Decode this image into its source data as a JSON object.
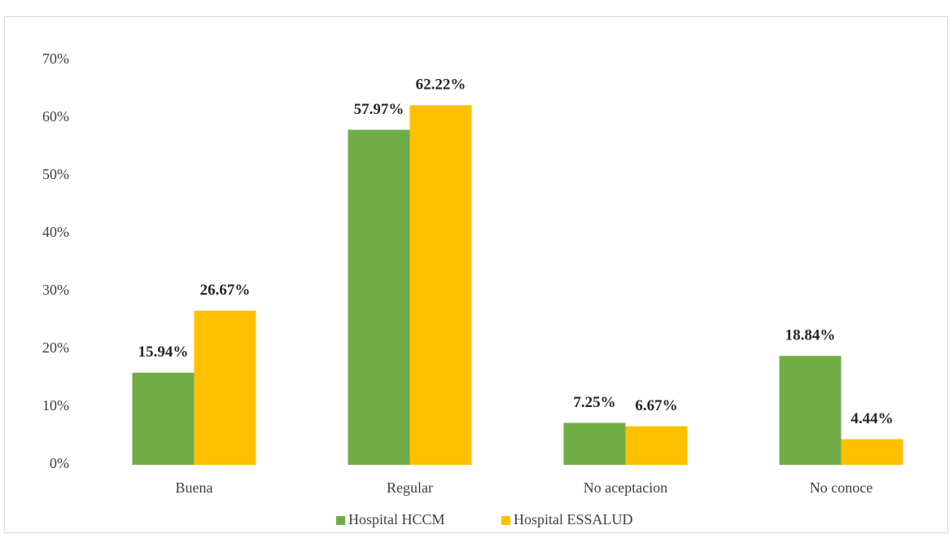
{
  "chart_data": {
    "type": "bar",
    "categories": [
      "Buena",
      "Regular",
      "No aceptacion",
      "No conoce"
    ],
    "series": [
      {
        "name": "Hospital HCCM",
        "color": "#70ad47",
        "values": [
          15.94,
          57.97,
          7.25,
          18.84
        ],
        "value_labels": [
          "15.94%",
          "57.97%",
          "7.25%",
          "18.84%"
        ]
      },
      {
        "name": "Hospital ESSALUD",
        "color": "#ffc000",
        "values": [
          26.67,
          62.22,
          6.67,
          4.44
        ],
        "value_labels": [
          "26.67%",
          "62.22%",
          "6.67%",
          "4.44%"
        ]
      }
    ],
    "ylim": [
      0,
      70
    ],
    "yticks": [
      {
        "value": 0,
        "label": "0%"
      },
      {
        "value": 10,
        "label": "10%"
      },
      {
        "value": 20,
        "label": "20%"
      },
      {
        "value": 30,
        "label": "30%"
      },
      {
        "value": 40,
        "label": "40%"
      },
      {
        "value": 50,
        "label": "50%"
      },
      {
        "value": 60,
        "label": "60%"
      },
      {
        "value": 70,
        "label": "70%"
      }
    ],
    "grid": false,
    "legend": "bottom"
  }
}
